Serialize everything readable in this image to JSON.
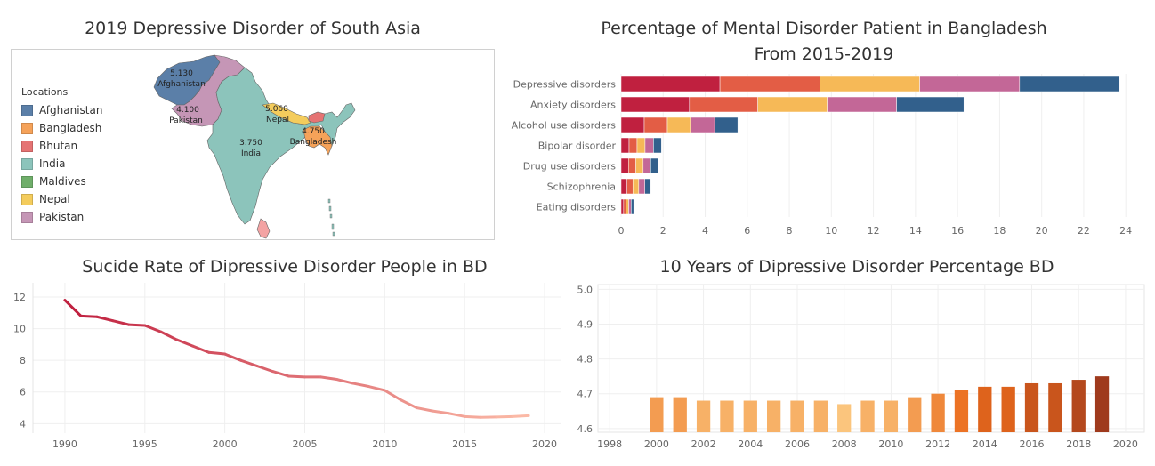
{
  "map": {
    "title": "2019 Depressive Disorder of South Asia",
    "legend_title": "Locations",
    "legend": [
      {
        "name": "Afghanistan",
        "color": "#5b7fa8"
      },
      {
        "name": "Bangladesh",
        "color": "#f5a259"
      },
      {
        "name": "Bhutan",
        "color": "#e57373"
      },
      {
        "name": "India",
        "color": "#8cc4bb"
      },
      {
        "name": "Maldives",
        "color": "#6fae6a"
      },
      {
        "name": "Nepal",
        "color": "#f4cc5c"
      },
      {
        "name": "Pakistan",
        "color": "#c596b6"
      }
    ],
    "labels": [
      {
        "value": "5.130",
        "country": "Afghanistan"
      },
      {
        "value": "4.100",
        "country": "Pakistan"
      },
      {
        "value": "3.750",
        "country": "India"
      },
      {
        "value": "5.060",
        "country": "Nepal"
      },
      {
        "value": "4.750",
        "country": "Bangladesh"
      }
    ]
  },
  "chart_data": [
    {
      "type": "bar",
      "orientation": "horizontal-stacked",
      "title": "Percentage of Mental Disorder Patient in Bangladesh From 2015-2019",
      "title_lines": [
        "Percentage of Mental Disorder Patient in Bangladesh",
        "From 2015-2019"
      ],
      "categories": [
        "Depressive disorders",
        "Anxiety disorders",
        "Alcohol use disorders",
        "Bipolar disorder",
        "Drug use disorders",
        "Schizophrenia",
        "Eating disorders"
      ],
      "segment_colors": [
        "#c0203f",
        "#e35d45",
        "#f6b957",
        "#c36797",
        "#32608c"
      ],
      "series": [
        {
          "values": [
            4.7,
            3.25,
            1.1,
            0.38,
            0.35,
            0.28,
            0.12
          ]
        },
        {
          "values": [
            4.75,
            3.25,
            1.1,
            0.38,
            0.35,
            0.28,
            0.12
          ]
        },
        {
          "values": [
            4.75,
            3.3,
            1.1,
            0.38,
            0.35,
            0.28,
            0.12
          ]
        },
        {
          "values": [
            4.75,
            3.3,
            1.15,
            0.4,
            0.36,
            0.29,
            0.12
          ]
        },
        {
          "values": [
            4.75,
            3.2,
            1.1,
            0.38,
            0.36,
            0.28,
            0.12
          ]
        }
      ],
      "xticks": [
        0,
        2,
        4,
        6,
        8,
        10,
        12,
        14,
        16,
        18,
        20,
        22,
        24
      ],
      "xlim": [
        0,
        24.5
      ],
      "grid": true
    },
    {
      "type": "line",
      "title": "Sucide Rate of Dipressive Disorder People in BD",
      "x": [
        1990,
        1991,
        1992,
        1993,
        1994,
        1995,
        1996,
        1997,
        1998,
        1999,
        2000,
        2001,
        2002,
        2003,
        2004,
        2005,
        2006,
        2007,
        2008,
        2009,
        2010,
        2011,
        2012,
        2013,
        2014,
        2015,
        2016,
        2017,
        2018,
        2019
      ],
      "y": [
        11.8,
        10.8,
        10.75,
        10.5,
        10.25,
        10.2,
        9.8,
        9.3,
        8.9,
        8.5,
        8.4,
        8.0,
        7.65,
        7.3,
        7.0,
        6.95,
        6.95,
        6.8,
        6.55,
        6.35,
        6.1,
        5.5,
        5.0,
        4.8,
        4.65,
        4.45,
        4.4,
        4.42,
        4.45,
        4.5
      ],
      "xticks": [
        1990,
        1995,
        2000,
        2005,
        2010,
        2015,
        2020
      ],
      "yticks": [
        4,
        6,
        8,
        10,
        12
      ],
      "xlim": [
        1988,
        2021
      ],
      "ylim": [
        3.4,
        12.9
      ],
      "colors": {
        "start": "#c0203f",
        "end": "#fbb9a6"
      },
      "grid": true
    },
    {
      "type": "bar",
      "title": "10 Years of Dipressive Disorder Percentage BD",
      "categories": [
        2000,
        2001,
        2002,
        2003,
        2004,
        2005,
        2006,
        2007,
        2008,
        2009,
        2010,
        2011,
        2012,
        2013,
        2014,
        2015,
        2016,
        2017,
        2018,
        2019
      ],
      "values": [
        4.69,
        4.69,
        4.68,
        4.68,
        4.68,
        4.68,
        4.68,
        4.68,
        4.67,
        4.68,
        4.68,
        4.69,
        4.7,
        4.71,
        4.72,
        4.72,
        4.73,
        4.73,
        4.74,
        4.75
      ],
      "xticks": [
        1998,
        2000,
        2002,
        2004,
        2006,
        2008,
        2010,
        2012,
        2014,
        2016,
        2018,
        2020
      ],
      "yticks": [
        4.6,
        4.7,
        4.8,
        4.9,
        5.0
      ],
      "ytick_labels": [
        "4.6",
        "4.7",
        "4.8",
        "4.9",
        "5.0"
      ],
      "xlim": [
        1997.5,
        2020.8
      ],
      "ylim": [
        4.5893,
        5.0137
      ],
      "colors": {
        "light": "#fbc57d",
        "mid": "#ea6b1c",
        "dark": "#9f3a1d"
      },
      "grid": true
    }
  ]
}
